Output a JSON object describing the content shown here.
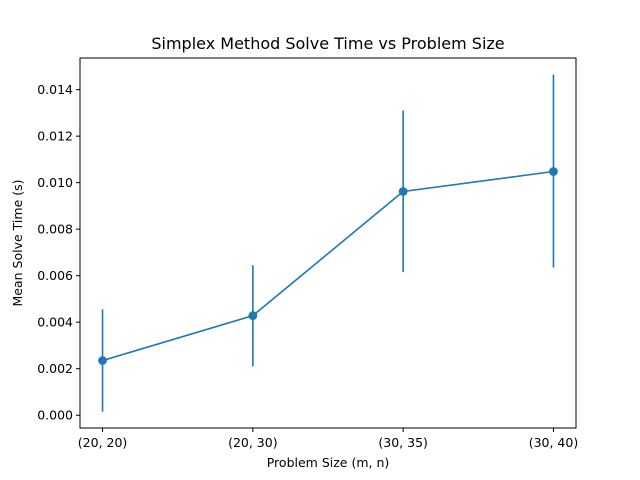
{
  "chart_data": {
    "type": "line",
    "title": "Simplex Method Solve Time vs Problem Size",
    "xlabel": "Problem Size (m, n)",
    "ylabel": "Mean Solve Time (s)",
    "categories": [
      "(20, 20)",
      "(20, 30)",
      "(30, 35)",
      "(30, 40)"
    ],
    "series": [
      {
        "values": [
          0.00235,
          0.00428,
          0.00962,
          0.01048
        ],
        "error_low": [
          0.00015,
          0.0021,
          0.00615,
          0.00635
        ],
        "error_high": [
          0.00455,
          0.00645,
          0.0131,
          0.01465
        ],
        "color": "#1f77b4"
      }
    ],
    "ylim": [
      -0.00055,
      0.01536
    ],
    "yticks": [
      0.0,
      0.002,
      0.004,
      0.006,
      0.008,
      0.01,
      0.012,
      0.014
    ],
    "ytick_labels": [
      "0.000",
      "0.002",
      "0.004",
      "0.006",
      "0.008",
      "0.010",
      "0.012",
      "0.014"
    ],
    "grid": false,
    "legend": "none"
  }
}
